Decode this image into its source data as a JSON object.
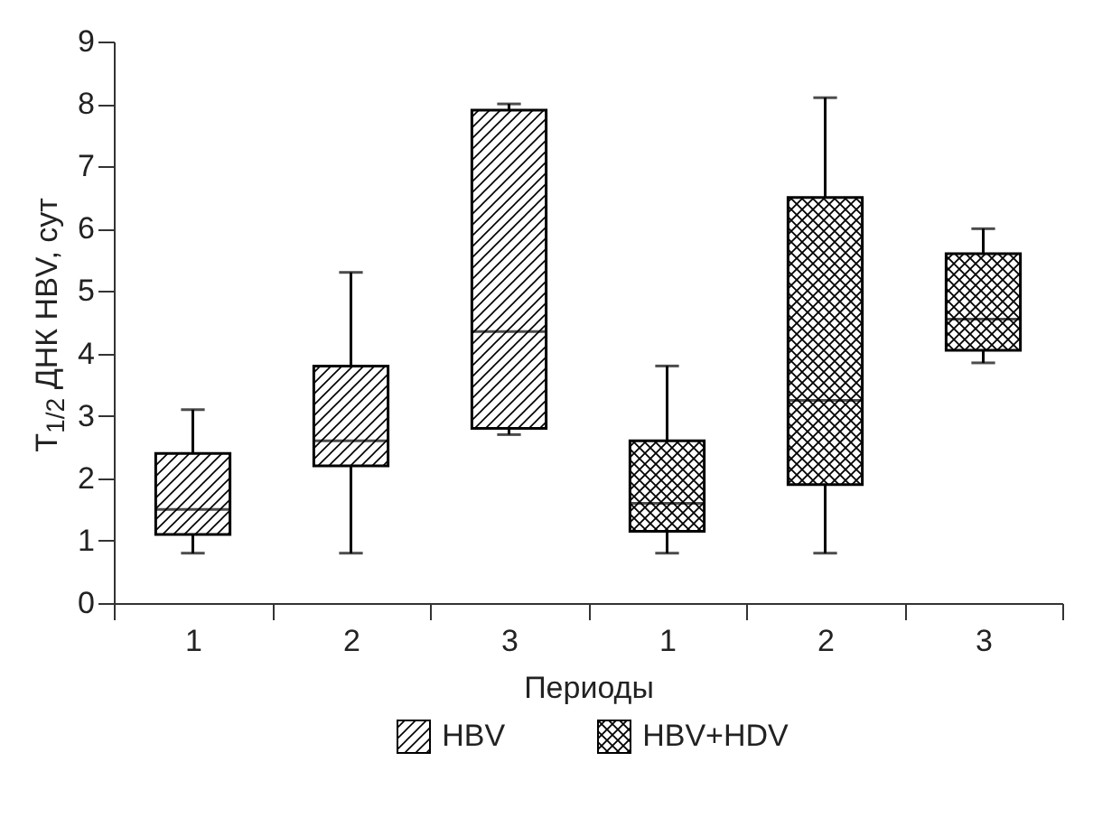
{
  "chart_data": {
    "type": "box",
    "xlabel": "Периоды",
    "ylabel": "T$_{1/2}$ ДНК HBV, сут",
    "categories": [
      "1",
      "2",
      "3",
      "1",
      "2",
      "3"
    ],
    "series": [
      {
        "name": "HBV",
        "color": "#000000",
        "boxes": [
          {
            "low": 0.8,
            "q1": 1.1,
            "median": 1.5,
            "q3": 2.4,
            "high": 3.1
          },
          {
            "low": 0.8,
            "q1": 2.2,
            "median": 2.6,
            "q3": 3.8,
            "high": 5.3
          },
          {
            "low": 2.7,
            "q1": 2.8,
            "median": 4.35,
            "q3": 7.9,
            "high": 8.0
          },
          null,
          null,
          null
        ]
      },
      {
        "name": "HBV+HDV",
        "color": "#000000",
        "boxes": [
          null,
          null,
          null,
          {
            "low": 0.8,
            "q1": 1.15,
            "median": 1.6,
            "q3": 2.6,
            "high": 3.8
          },
          {
            "low": 0.8,
            "q1": 1.9,
            "median": 3.25,
            "q3": 6.5,
            "high": 8.1
          },
          {
            "low": 3.85,
            "q1": 4.05,
            "median": 4.55,
            "q3": 5.6,
            "high": 6.0
          }
        ]
      }
    ],
    "ylim": [
      0,
      9
    ],
    "yticks": [
      0,
      1,
      2,
      3,
      4,
      5,
      6,
      7,
      8,
      9
    ],
    "grid": false,
    "legend": "bottom"
  }
}
